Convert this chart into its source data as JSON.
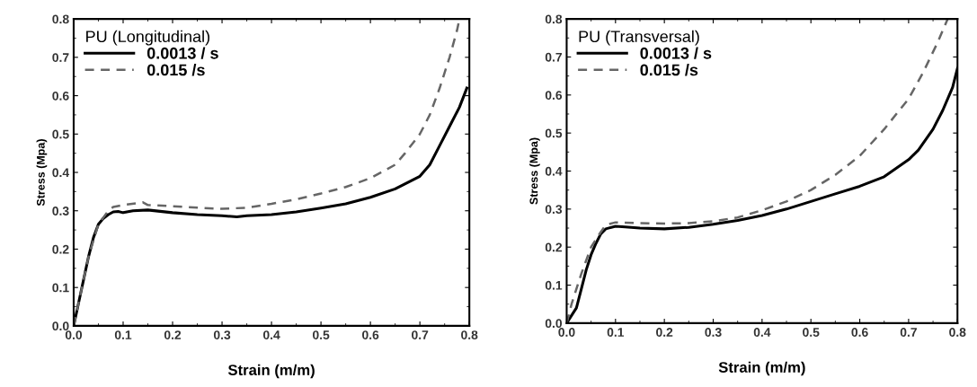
{
  "chart_data": [
    {
      "type": "line",
      "legend_title": "PU (Longitudinal)",
      "xlabel": "Strain (m/m)",
      "ylabel": "Stress (Mpa)",
      "xlim": [
        0,
        0.8
      ],
      "ylim": [
        0,
        0.8
      ],
      "xticks": [
        {
          "value": 0,
          "label": "0.0"
        },
        0.1,
        0.2,
        0.3,
        0.4,
        0.5,
        0.6,
        0.7,
        0.8
      ],
      "yticks": [
        {
          "value": 0,
          "label": "0.0"
        },
        0.1,
        0.2,
        0.3,
        0.4,
        0.5,
        0.6,
        0.7,
        0.8
      ],
      "grid": false,
      "legend": "top left",
      "marker": "none",
      "series": [
        {
          "name": "0.0013 / s",
          "color": "#000000",
          "line_style": "solid",
          "x": [
            0,
            0.01,
            0.02,
            0.03,
            0.04,
            0.05,
            0.06,
            0.07,
            0.08,
            0.09,
            0.1,
            0.12,
            0.15,
            0.2,
            0.25,
            0.3,
            0.33,
            0.35,
            0.4,
            0.45,
            0.5,
            0.55,
            0.6,
            0.65,
            0.7,
            0.72,
            0.74,
            0.76,
            0.78,
            0.795
          ],
          "values": [
            0,
            0.06,
            0.12,
            0.18,
            0.23,
            0.265,
            0.28,
            0.29,
            0.297,
            0.298,
            0.295,
            0.3,
            0.302,
            0.295,
            0.29,
            0.287,
            0.284,
            0.287,
            0.29,
            0.297,
            0.307,
            0.318,
            0.335,
            0.357,
            0.39,
            0.42,
            0.47,
            0.52,
            0.57,
            0.62
          ]
        },
        {
          "name": "0.015 /s",
          "color": "#666666",
          "line_style": "dashed",
          "x": [
            0,
            0.01,
            0.03,
            0.05,
            0.07,
            0.08,
            0.1,
            0.14,
            0.15,
            0.2,
            0.25,
            0.3,
            0.35,
            0.4,
            0.45,
            0.5,
            0.55,
            0.6,
            0.65,
            0.67,
            0.7,
            0.72,
            0.74,
            0.76,
            0.775,
            0.78
          ],
          "values": [
            0,
            0.06,
            0.18,
            0.265,
            0.3,
            0.31,
            0.315,
            0.322,
            0.315,
            0.312,
            0.308,
            0.305,
            0.308,
            0.318,
            0.33,
            0.345,
            0.362,
            0.385,
            0.42,
            0.45,
            0.5,
            0.55,
            0.62,
            0.7,
            0.77,
            0.8
          ]
        }
      ]
    },
    {
      "type": "line",
      "legend_title": "PU (Transversal)",
      "xlabel": "Strain (m/m)",
      "ylabel": "Stress (Mpa)",
      "xlim": [
        0,
        0.8
      ],
      "ylim": [
        0,
        0.8
      ],
      "xticks": [
        {
          "value": 0,
          "label": "0.0"
        },
        0.1,
        0.2,
        0.3,
        0.4,
        0.5,
        0.6,
        0.7,
        0.8
      ],
      "yticks": [
        {
          "value": 0,
          "label": "0.0"
        },
        0.1,
        0.2,
        0.3,
        0.4,
        0.5,
        0.6,
        0.7,
        0.8
      ],
      "grid": false,
      "legend": "top left",
      "marker": "none",
      "series": [
        {
          "name": "0.0013 / s",
          "color": "#000000",
          "line_style": "solid",
          "x": [
            0,
            0.02,
            0.03,
            0.04,
            0.05,
            0.06,
            0.07,
            0.08,
            0.1,
            0.12,
            0.15,
            0.2,
            0.25,
            0.3,
            0.35,
            0.4,
            0.45,
            0.5,
            0.55,
            0.6,
            0.65,
            0.7,
            0.72,
            0.75,
            0.77,
            0.79,
            0.8
          ],
          "values": [
            0,
            0.04,
            0.09,
            0.14,
            0.18,
            0.21,
            0.235,
            0.248,
            0.255,
            0.253,
            0.25,
            0.248,
            0.252,
            0.26,
            0.27,
            0.283,
            0.3,
            0.32,
            0.34,
            0.36,
            0.385,
            0.43,
            0.455,
            0.51,
            0.56,
            0.62,
            0.67
          ]
        },
        {
          "name": "0.015 /s",
          "color": "#666666",
          "line_style": "dashed",
          "x": [
            0,
            0.01,
            0.03,
            0.05,
            0.07,
            0.08,
            0.1,
            0.15,
            0.2,
            0.25,
            0.3,
            0.35,
            0.4,
            0.45,
            0.5,
            0.55,
            0.6,
            0.65,
            0.7,
            0.73,
            0.76,
            0.78
          ],
          "values": [
            0,
            0.05,
            0.13,
            0.2,
            0.24,
            0.258,
            0.265,
            0.263,
            0.262,
            0.263,
            0.268,
            0.278,
            0.297,
            0.32,
            0.35,
            0.39,
            0.44,
            0.51,
            0.59,
            0.66,
            0.74,
            0.8
          ]
        }
      ]
    }
  ]
}
